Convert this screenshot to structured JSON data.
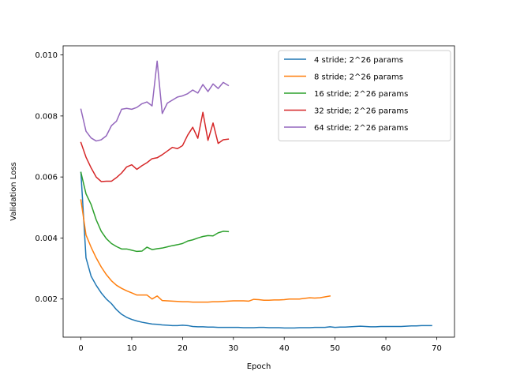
{
  "chart_data": {
    "type": "line",
    "xlabel": "Epoch",
    "ylabel": "Validation Loss",
    "xlim": [
      -3.5,
      73.5
    ],
    "ylim": [
      0.00075,
      0.0103
    ],
    "xticks": [
      0,
      10,
      20,
      30,
      40,
      50,
      60,
      70
    ],
    "yticks": [
      0.002,
      0.004,
      0.006,
      0.008,
      0.01
    ],
    "xtick_labels": [
      "0",
      "10",
      "20",
      "30",
      "40",
      "50",
      "60",
      "70"
    ],
    "ytick_labels": [
      "0.002",
      "0.004",
      "0.006",
      "0.008",
      "0.010"
    ],
    "grid": false,
    "legend_position": "top-right",
    "series": [
      {
        "name": "4 stride; 2^26 params",
        "color": "#1f77b4",
        "values": [
          0.00615,
          0.00335,
          0.00275,
          0.00245,
          0.0022,
          0.002,
          0.00185,
          0.00165,
          0.0015,
          0.0014,
          0.00133,
          0.00128,
          0.00124,
          0.00121,
          0.00118,
          0.00117,
          0.00115,
          0.00114,
          0.00113,
          0.00113,
          0.00114,
          0.00113,
          0.0011,
          0.00109,
          0.00109,
          0.00108,
          0.00108,
          0.00107,
          0.00107,
          0.00107,
          0.00107,
          0.00107,
          0.00106,
          0.00106,
          0.00106,
          0.00107,
          0.00107,
          0.00106,
          0.00106,
          0.00106,
          0.00105,
          0.00105,
          0.00105,
          0.00106,
          0.00106,
          0.00106,
          0.00107,
          0.00107,
          0.00107,
          0.00109,
          0.00107,
          0.00108,
          0.00108,
          0.00109,
          0.0011,
          0.00111,
          0.0011,
          0.00109,
          0.00109,
          0.0011,
          0.0011,
          0.0011,
          0.0011,
          0.0011,
          0.00111,
          0.00112,
          0.00112,
          0.00113,
          0.00113,
          0.00113
        ]
      },
      {
        "name": "8 stride; 2^26 params",
        "color": "#ff7f0e",
        "values": [
          0.00525,
          0.0041,
          0.0037,
          0.00335,
          0.00305,
          0.0028,
          0.0026,
          0.00245,
          0.00235,
          0.00227,
          0.0022,
          0.00213,
          0.00213,
          0.00213,
          0.002,
          0.0021,
          0.00195,
          0.00194,
          0.00193,
          0.00192,
          0.00191,
          0.00191,
          0.0019,
          0.0019,
          0.0019,
          0.0019,
          0.00191,
          0.00191,
          0.00192,
          0.00193,
          0.00194,
          0.00194,
          0.00194,
          0.00193,
          0.00199,
          0.00198,
          0.00196,
          0.00196,
          0.00197,
          0.00197,
          0.00198,
          0.002,
          0.002,
          0.002,
          0.00202,
          0.00204,
          0.00203,
          0.00204,
          0.00207,
          0.0021
        ]
      },
      {
        "name": "16 stride; 2^26 params",
        "color": "#2ca02c",
        "values": [
          0.00615,
          0.00545,
          0.0051,
          0.0046,
          0.00422,
          0.00398,
          0.00382,
          0.00372,
          0.00364,
          0.00364,
          0.0036,
          0.00356,
          0.00357,
          0.0037,
          0.00362,
          0.00365,
          0.00367,
          0.00371,
          0.00375,
          0.00378,
          0.00382,
          0.0039,
          0.00394,
          0.004,
          0.00405,
          0.00408,
          0.00407,
          0.00417,
          0.00422,
          0.00421
        ]
      },
      {
        "name": "32 stride; 2^26 params",
        "color": "#d62728",
        "values": [
          0.00713,
          0.00665,
          0.0063,
          0.006,
          0.00585,
          0.00586,
          0.00586,
          0.00598,
          0.00613,
          0.00633,
          0.0064,
          0.00625,
          0.00637,
          0.00647,
          0.0066,
          0.00663,
          0.00673,
          0.00685,
          0.00697,
          0.00693,
          0.00703,
          0.00737,
          0.00763,
          0.00727,
          0.00812,
          0.0072,
          0.00777,
          0.0071,
          0.00722,
          0.00724
        ]
      },
      {
        "name": "64 stride; 2^26 params",
        "color": "#9467bd",
        "values": [
          0.00822,
          0.0075,
          0.00728,
          0.00718,
          0.00722,
          0.00735,
          0.00768,
          0.00783,
          0.00822,
          0.00825,
          0.00822,
          0.00828,
          0.0084,
          0.00846,
          0.00833,
          0.0098,
          0.00808,
          0.00842,
          0.00852,
          0.00862,
          0.00866,
          0.00873,
          0.00885,
          0.00875,
          0.00903,
          0.0088,
          0.00905,
          0.0089,
          0.0091,
          0.009
        ]
      }
    ]
  }
}
